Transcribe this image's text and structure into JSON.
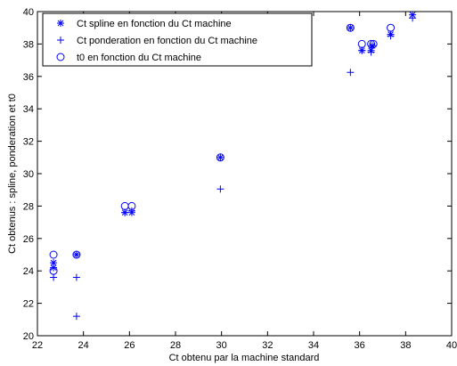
{
  "chart_data": {
    "type": "scatter",
    "title": "",
    "xlabel": "Ct obtenu par la machine standard",
    "ylabel": "Ct obtenus : spline, ponderation et t0",
    "xlim": [
      22,
      40
    ],
    "ylim": [
      20,
      40
    ],
    "xticks": [
      "22",
      "24",
      "26",
      "28",
      "30",
      "32",
      "34",
      "36",
      "38",
      "40"
    ],
    "yticks": [
      "20",
      "22",
      "24",
      "26",
      "28",
      "30",
      "32",
      "34",
      "36",
      "38",
      "40"
    ],
    "grid": false,
    "legend_position": "top-left",
    "color": "#0000ff",
    "series": [
      {
        "name": "Ct spline en fonction du Ct machine",
        "marker": "asterisk",
        "points": [
          [
            22.7,
            24.5
          ],
          [
            22.7,
            24.2
          ],
          [
            23.7,
            25.0
          ],
          [
            25.8,
            27.6
          ],
          [
            26.1,
            27.6
          ],
          [
            29.95,
            31.0
          ],
          [
            35.6,
            39.0
          ],
          [
            36.1,
            37.6
          ],
          [
            36.5,
            37.6
          ],
          [
            36.55,
            37.9
          ],
          [
            37.35,
            38.6
          ],
          [
            38.3,
            39.8
          ]
        ]
      },
      {
        "name": "Ct ponderation en fonction du Ct machine",
        "marker": "plus",
        "points": [
          [
            22.7,
            23.6
          ],
          [
            23.7,
            23.6
          ],
          [
            23.7,
            21.2
          ],
          [
            25.8,
            27.6
          ],
          [
            26.1,
            27.7
          ],
          [
            29.95,
            29.05
          ],
          [
            35.6,
            36.25
          ],
          [
            36.1,
            37.6
          ],
          [
            36.5,
            37.5
          ],
          [
            37.35,
            38.5
          ],
          [
            38.3,
            39.6
          ]
        ]
      },
      {
        "name": "t0 en fonction du Ct machine",
        "marker": "circle",
        "points": [
          [
            22.7,
            25.0
          ],
          [
            22.7,
            24.0
          ],
          [
            23.7,
            25.0
          ],
          [
            25.8,
            28.0
          ],
          [
            26.1,
            28.0
          ],
          [
            29.95,
            31.0
          ],
          [
            35.6,
            39.0
          ],
          [
            36.1,
            38.0
          ],
          [
            36.5,
            38.0
          ],
          [
            36.6,
            38.0
          ],
          [
            37.35,
            39.0
          ]
        ]
      }
    ]
  }
}
